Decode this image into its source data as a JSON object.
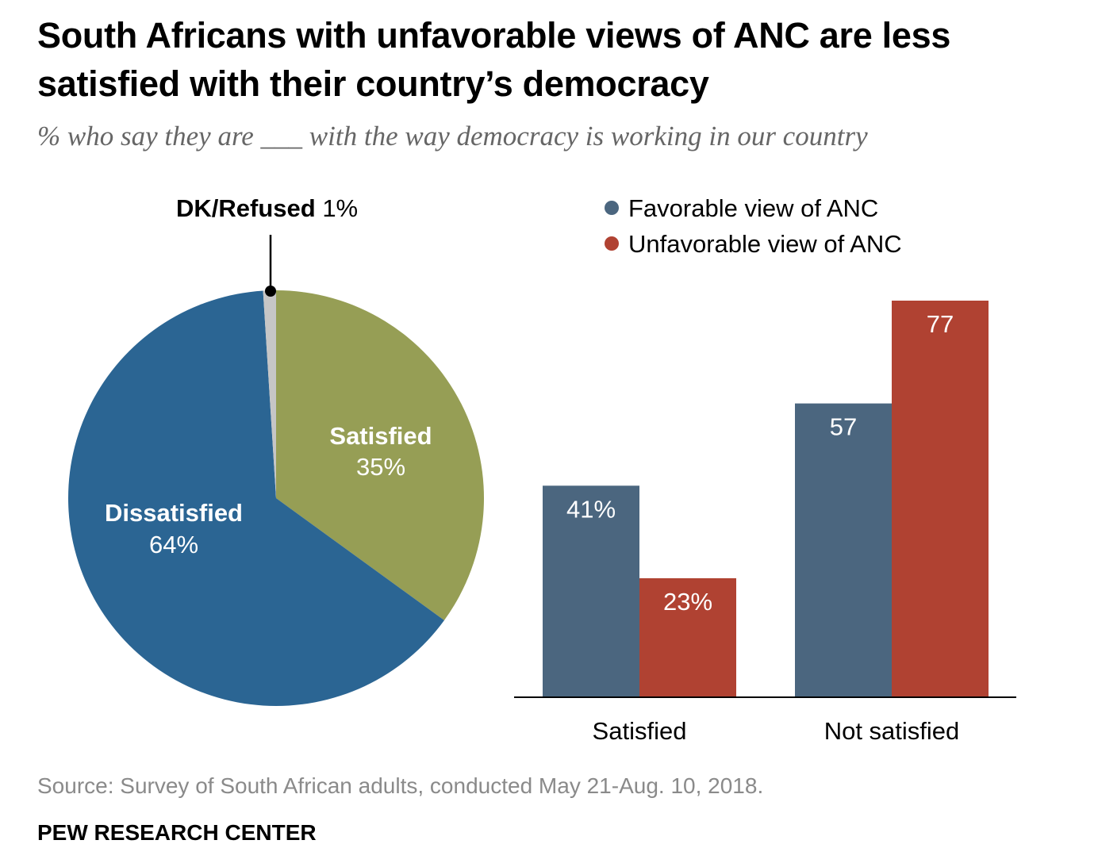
{
  "title": "South Africans with unfavorable views of ANC are less satisfied with their country’s democracy",
  "subtitle": "% who say they are ___ with the way democracy is working in our country",
  "source": "Source: Survey of South African adults, conducted May 21-Aug. 10, 2018.",
  "brand": "PEW RESEARCH CENTER",
  "chart_data": [
    {
      "type": "pie",
      "slices": [
        {
          "label": "Satisfied",
          "value": 35,
          "display": "35%",
          "color": "#969e55"
        },
        {
          "label": "Dissatisfied",
          "value": 64,
          "display": "64%",
          "color": "#2b6593"
        },
        {
          "label": "DK/Refused",
          "value": 1,
          "display": "1%",
          "color": "#c6c6c6"
        }
      ]
    },
    {
      "type": "bar",
      "categories": [
        "Satisfied",
        "Not satisfied"
      ],
      "series": [
        {
          "name": "Favorable view of ANC",
          "values": [
            41,
            57
          ],
          "labels": [
            "41%",
            "57"
          ],
          "color": "#4b667f"
        },
        {
          "name": "Unfavorable view of ANC",
          "values": [
            23,
            77
          ],
          "labels": [
            "23%",
            "77"
          ],
          "color": "#b04232"
        }
      ],
      "ylim": [
        0,
        77
      ],
      "legend": "top"
    }
  ]
}
